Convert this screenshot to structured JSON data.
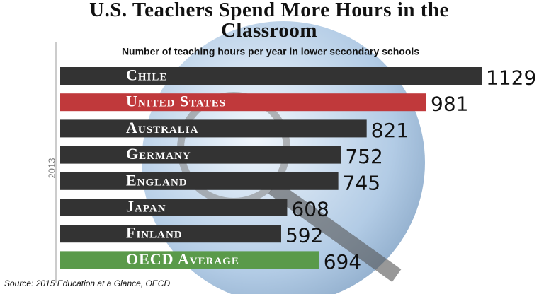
{
  "chart_data": {
    "type": "bar",
    "orientation": "horizontal",
    "title": "U.S. Teachers Spend More Hours in the Classroom",
    "subtitle": "Number of teaching hours per year in lower secondary schools",
    "y_label": "2013",
    "source": "Source: 2015 Education at a Glance, OECD",
    "categories": [
      "Chile",
      "United States",
      "Australia",
      "Germany",
      "England",
      "Japan",
      "Finland",
      "OECD Average"
    ],
    "values": [
      1129,
      981,
      821,
      752,
      745,
      608,
      592,
      694
    ],
    "colors": [
      "#333333",
      "#c0393b",
      "#333333",
      "#333333",
      "#333333",
      "#333333",
      "#333333",
      "#5a9a4a"
    ]
  }
}
